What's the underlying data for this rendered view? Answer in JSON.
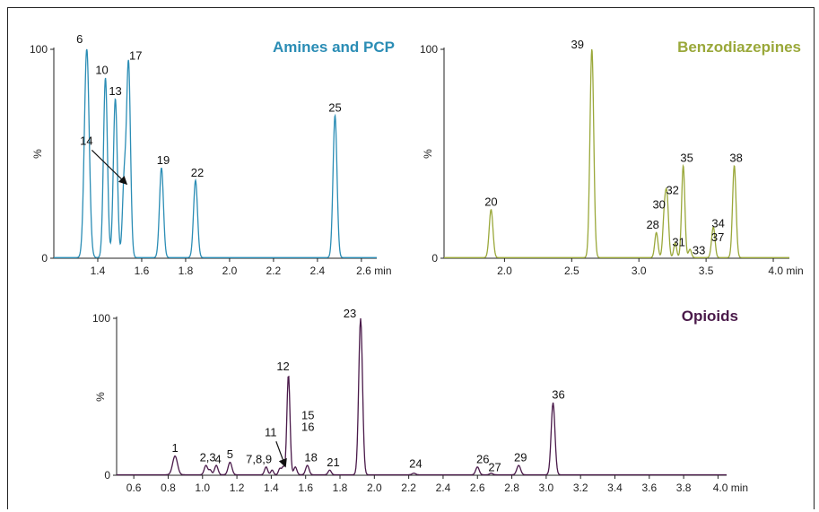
{
  "chart_data": [
    {
      "type": "line",
      "title": "Amines and PCP",
      "title_color": "#2b8db5",
      "color": "#2b8db5",
      "xlim": [
        1.2,
        2.67
      ],
      "xticks": [
        "1.4",
        "1.6",
        "1.8",
        "2.0",
        "2.2",
        "2.4",
        "2.6"
      ],
      "xunit": "min",
      "ylabel": "%",
      "yticks": [
        "0",
        "100"
      ],
      "ylim": [
        0,
        100
      ],
      "peaks": [
        {
          "label": "6",
          "rt": 1.35,
          "height": 100,
          "width": 0.011
        },
        {
          "label": "10",
          "rt": 1.435,
          "height": 86,
          "width": 0.009
        },
        {
          "label": "13",
          "rt": 1.48,
          "height": 76,
          "width": 0.009
        },
        {
          "label": "14",
          "rt": 1.52,
          "height": 35,
          "width": 0.008
        },
        {
          "label": "17",
          "rt": 1.54,
          "height": 93,
          "width": 0.009
        },
        {
          "label": "19",
          "rt": 1.69,
          "height": 43,
          "width": 0.009
        },
        {
          "label": "22",
          "rt": 1.845,
          "height": 37,
          "width": 0.009
        },
        {
          "label": "25",
          "rt": 2.48,
          "height": 68,
          "width": 0.009
        }
      ]
    },
    {
      "type": "line",
      "title": "Benzodiazepines",
      "title_color": "#9aa83a",
      "color": "#9aa83a",
      "xlim": [
        1.55,
        4.12
      ],
      "xticks": [
        "2.0",
        "2.5",
        "3.0",
        "3.5",
        "4.0"
      ],
      "xunit": "min",
      "ylabel": "%",
      "yticks": [
        "0",
        "100"
      ],
      "ylim": [
        0,
        100
      ],
      "peaks": [
        {
          "label": "20",
          "rt": 1.9,
          "height": 23,
          "width": 0.014
        },
        {
          "label": "39",
          "rt": 2.65,
          "height": 100,
          "width": 0.014
        },
        {
          "label": "28",
          "rt": 3.13,
          "height": 12,
          "width": 0.012
        },
        {
          "label": "30",
          "rt": 3.19,
          "height": 20,
          "width": 0.012
        },
        {
          "label": "32",
          "rt": 3.21,
          "height": 26,
          "width": 0.012
        },
        {
          "label": "31",
          "rt": 3.27,
          "height": 7,
          "width": 0.011
        },
        {
          "label": "35",
          "rt": 3.33,
          "height": 44,
          "width": 0.012
        },
        {
          "label": "33",
          "rt": 3.38,
          "height": 4,
          "width": 0.011
        },
        {
          "label": "34",
          "rt": 3.55,
          "height": 10,
          "width": 0.012
        },
        {
          "label": "37",
          "rt": 3.56,
          "height": 6,
          "width": 0.011
        },
        {
          "label": "38",
          "rt": 3.71,
          "height": 44,
          "width": 0.013
        }
      ]
    },
    {
      "type": "line",
      "title": "Opioids",
      "title_color": "#4a1a4a",
      "color": "#4a1a4a",
      "xlim": [
        0.5,
        4.05
      ],
      "xticks": [
        "0.6",
        "0.8",
        "1.0",
        "1.2",
        "1.4",
        "1.6",
        "1.8",
        "2.0",
        "2.2",
        "2.4",
        "2.6",
        "2.8",
        "3.0",
        "3.2",
        "3.4",
        "3.6",
        "3.8",
        "4.0"
      ],
      "xunit": "min",
      "ylabel": "%",
      "yticks": [
        "0",
        "100"
      ],
      "ylim": [
        0,
        100
      ],
      "peaks": [
        {
          "label": "1",
          "rt": 0.84,
          "height": 12,
          "width": 0.014
        },
        {
          "label": "2,3",
          "rt": 1.02,
          "height": 6,
          "width": 0.01
        },
        {
          "label": "",
          "rt": 1.045,
          "height": 3,
          "width": 0.008
        },
        {
          "label": "4",
          "rt": 1.08,
          "height": 6,
          "width": 0.01
        },
        {
          "label": "5",
          "rt": 1.16,
          "height": 8,
          "width": 0.011
        },
        {
          "label": "7,8,9",
          "rt": 1.37,
          "height": 5,
          "width": 0.009
        },
        {
          "label": "",
          "rt": 1.405,
          "height": 3,
          "width": 0.008
        },
        {
          "label": "",
          "rt": 1.45,
          "height": 4,
          "width": 0.008
        },
        {
          "label": "11",
          "rt": 1.47,
          "height": 5,
          "width": 0.008
        },
        {
          "label": "12",
          "rt": 1.5,
          "height": 64,
          "width": 0.009
        },
        {
          "label": "15\n16",
          "rt": 1.54,
          "height": 5,
          "width": 0.009
        },
        {
          "label": "18",
          "rt": 1.61,
          "height": 6,
          "width": 0.01
        },
        {
          "label": "21",
          "rt": 1.74,
          "height": 3,
          "width": 0.009
        },
        {
          "label": "23",
          "rt": 1.92,
          "height": 100,
          "width": 0.011
        },
        {
          "label": "24",
          "rt": 2.23,
          "height": 1,
          "width": 0.01
        },
        {
          "label": "26",
          "rt": 2.6,
          "height": 5,
          "width": 0.01
        },
        {
          "label": "27",
          "rt": 2.68,
          "height": 1,
          "width": 0.009
        },
        {
          "label": "29",
          "rt": 2.84,
          "height": 6,
          "width": 0.011
        },
        {
          "label": "36",
          "rt": 3.04,
          "height": 46,
          "width": 0.011
        }
      ]
    }
  ]
}
